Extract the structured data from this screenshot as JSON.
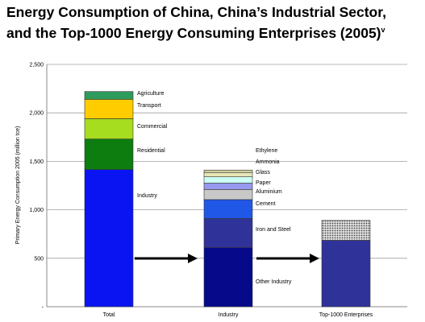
{
  "title": {
    "line1": "Energy Consumption of China, China’s Industrial Sector,",
    "line2": "and the Top-1000 Energy Consuming Enterprises (2005)",
    "superscript": "v"
  },
  "chart_data": {
    "type": "bar",
    "stacked": true,
    "categories": [
      "Total",
      "Industry",
      "Top-1000 Enterprises"
    ],
    "ylabel": "Primary Energy Consumption 2005 (million tce)",
    "xlabel": "",
    "ylim": [
      0,
      2500
    ],
    "yticks": [
      {
        "value": 0,
        "label": "-"
      },
      {
        "value": 500,
        "label": "500"
      },
      {
        "value": 1000,
        "label": "1,000"
      },
      {
        "value": 1500,
        "label": "1,500"
      },
      {
        "value": 2000,
        "label": "2,000"
      },
      {
        "value": 2500,
        "label": "2,500"
      }
    ],
    "grid": true,
    "bars": [
      {
        "category": "Total",
        "segments": [
          {
            "name": "Industry",
            "value": 1415,
            "color": "#0a14f2"
          },
          {
            "name": "Residential",
            "value": 315,
            "color": "#0d7d10"
          },
          {
            "name": "Commercial",
            "value": 210,
            "color": "#a6dd1f"
          },
          {
            "name": "Transport",
            "value": 200,
            "color": "#ffcc00"
          },
          {
            "name": "Agriculture",
            "value": 80,
            "color": "#2e9a5c"
          }
        ]
      },
      {
        "category": "Industry",
        "segments": [
          {
            "name": "Other Industry",
            "value": 610,
            "color": "#060a8a"
          },
          {
            "name": "Iron and Steel",
            "value": 300,
            "color": "#2f3399"
          },
          {
            "name": "Cement",
            "value": 195,
            "color": "#2057e6"
          },
          {
            "name": "Aluminium",
            "value": 105,
            "color": "#c8c8c8"
          },
          {
            "name": "Paper",
            "value": 65,
            "color": "#9898f0"
          },
          {
            "name": "Glass",
            "value": 65,
            "color": "#ccfff5"
          },
          {
            "name": "Ammonia",
            "value": 45,
            "color": "#e6e6b8"
          },
          {
            "name": "Ethylene",
            "value": 25,
            "color": "#d0d0a0"
          }
        ]
      },
      {
        "category": "Top-1000 Enterprises",
        "segments": [
          {
            "name": "",
            "value": 685,
            "color": "#2f3399"
          },
          {
            "name": "",
            "value": 205,
            "color": "#b8b8b8",
            "pattern": "dots"
          }
        ]
      }
    ],
    "annotations": [
      "arrow Total→Industry",
      "arrow Industry→Top-1000 Enterprises"
    ]
  }
}
